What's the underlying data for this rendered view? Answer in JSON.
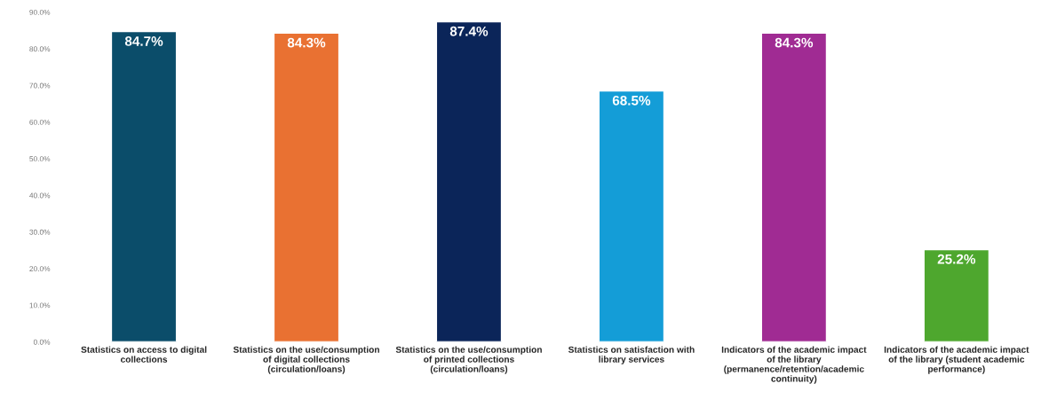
{
  "chart_data": {
    "type": "bar",
    "categories": [
      "Statistics on access to digital\ncollections",
      "Statistics on the use/consumption\nof digital collections\n(circulation/loans)",
      "Statistics on the use/consumption\nof printed collections\n(circulation/loans)",
      "Statistics on satisfaction with\nlibrary services",
      "Indicators of the academic impact\nof the library\n(permanence/retention/academic\ncontinuity)",
      "Indicators of the academic impact\nof the library (student academic\nperformance)"
    ],
    "values": [
      84.7,
      84.3,
      87.4,
      68.5,
      84.3,
      25.2
    ],
    "colors": [
      "#0b4d6a",
      "#e97132",
      "#0b2559",
      "#149dd7",
      "#a02b93",
      "#4ea72e"
    ],
    "value_labels": [
      "84.7%",
      "84.3%",
      "87.4%",
      "68.5%",
      "84.3%",
      "25.2%"
    ],
    "ylim": [
      0,
      90
    ],
    "yticks": [
      {
        "value": 0,
        "label": "0.0%"
      },
      {
        "value": 10,
        "label": "10.0%"
      },
      {
        "value": 20,
        "label": "20.0%"
      },
      {
        "value": 30,
        "label": "30.0%"
      },
      {
        "value": 40,
        "label": "40.0%"
      },
      {
        "value": 50,
        "label": "50.0%"
      },
      {
        "value": 60,
        "label": "60.0%"
      },
      {
        "value": 70,
        "label": "70.0%"
      },
      {
        "value": 80,
        "label": "80.0%"
      },
      {
        "value": 90,
        "label": "90.0%"
      }
    ],
    "grid": false,
    "legend": false
  }
}
